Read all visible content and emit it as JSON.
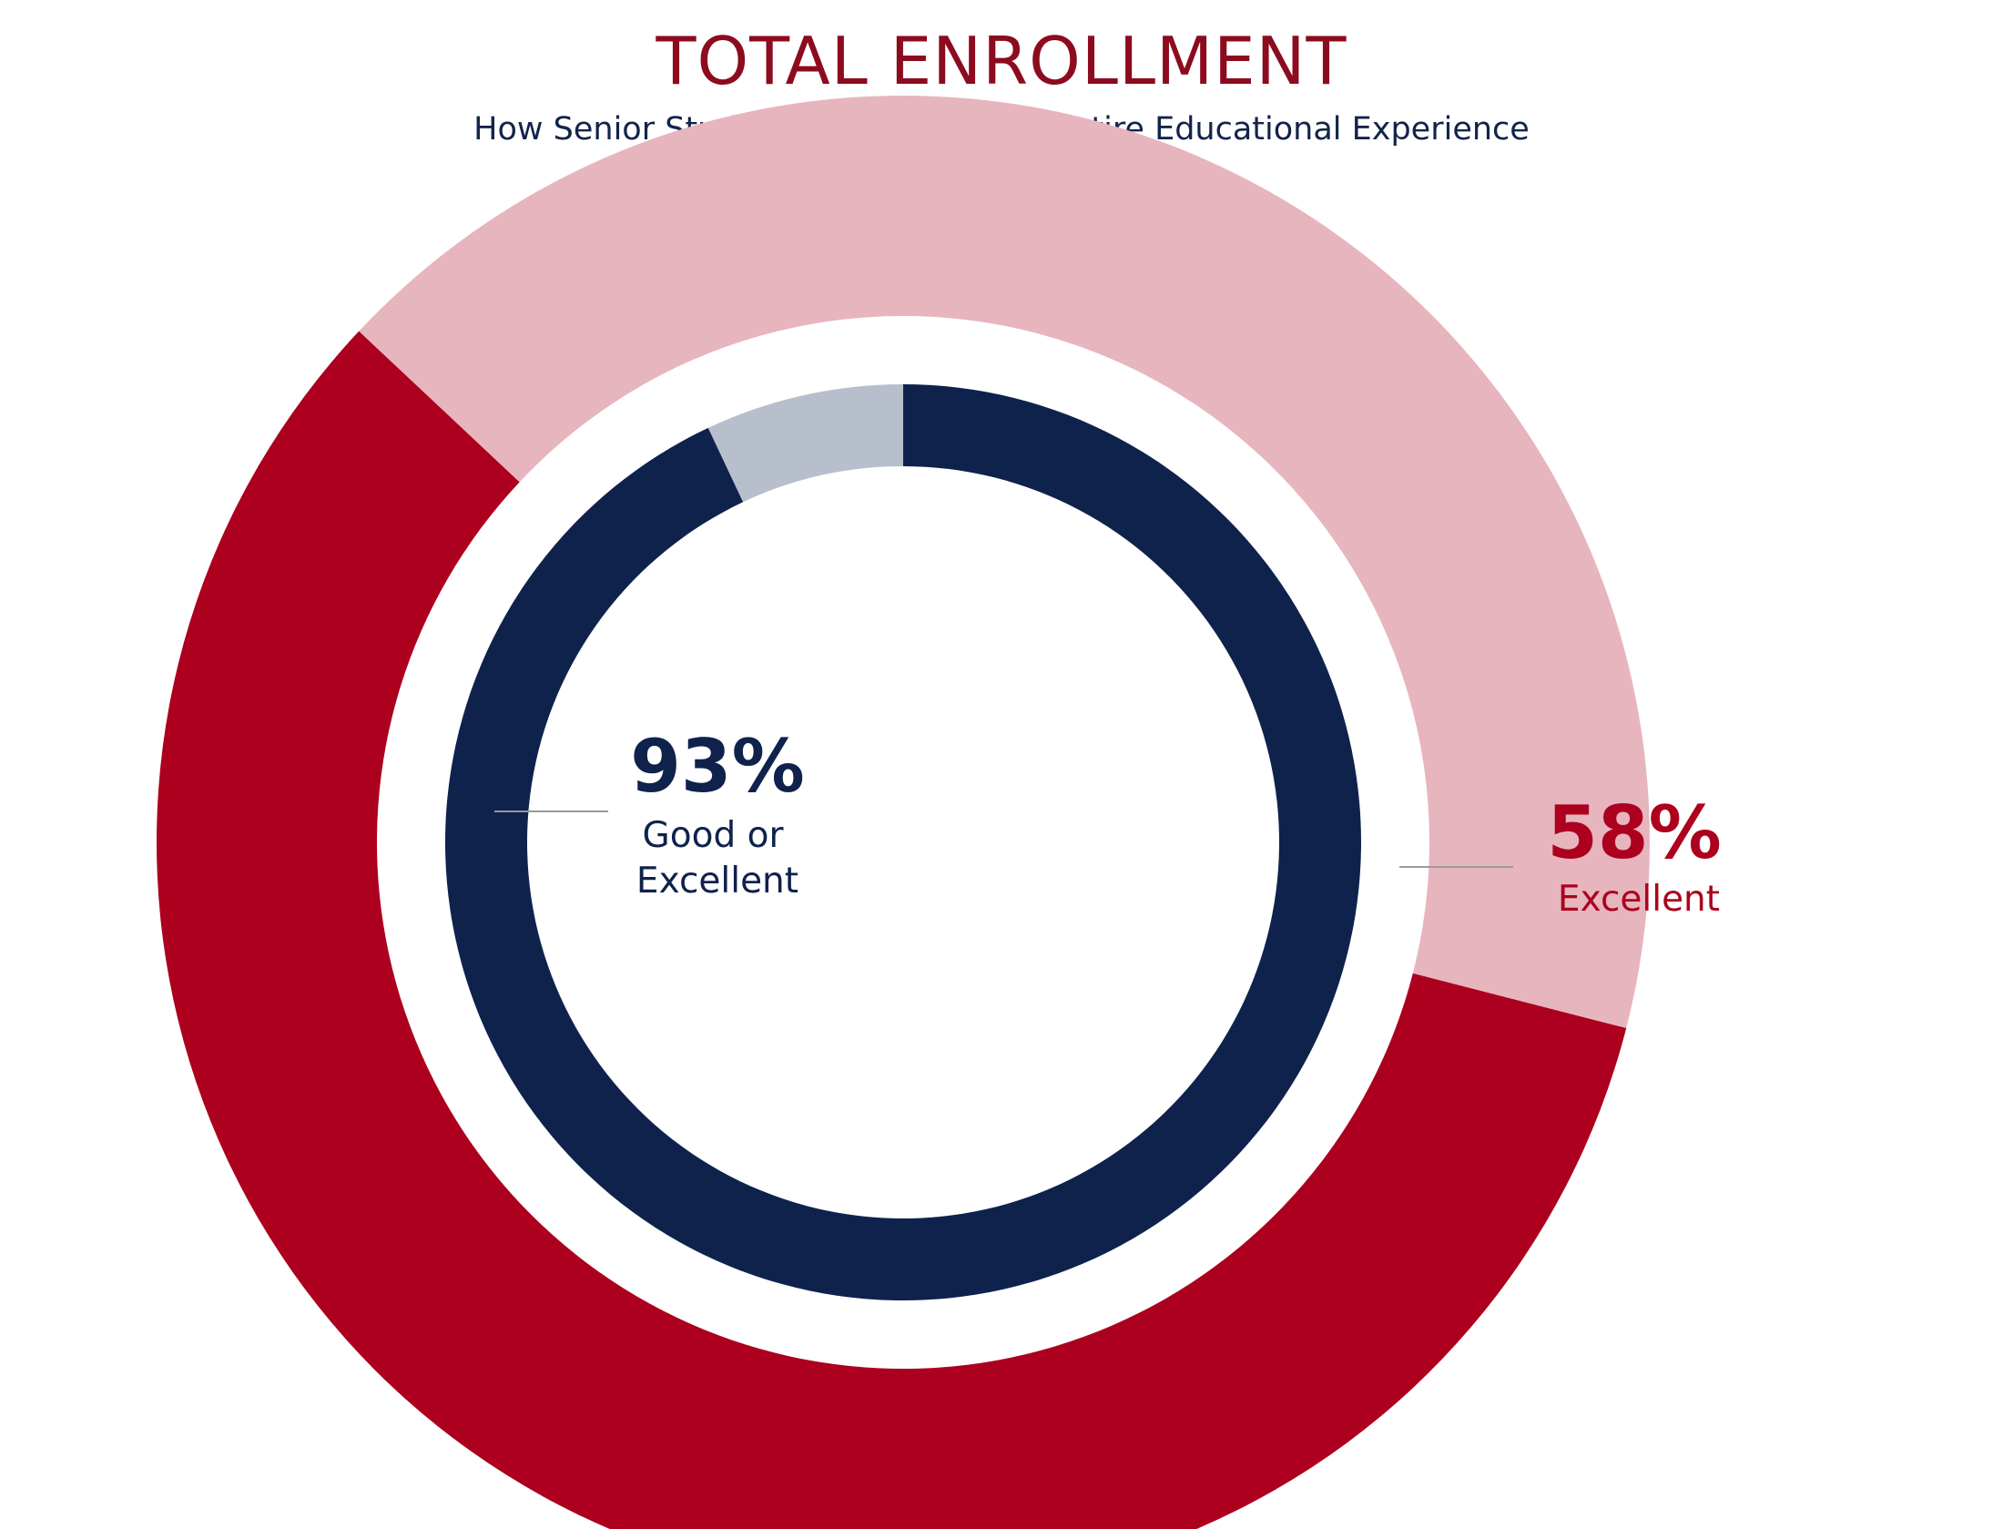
{
  "chart_data": {
    "type": "pie",
    "title": "TOTAL ENROLLMENT",
    "subtitle": "How Senior Students Evaluate their Entire Educational Experience",
    "rings": [
      {
        "ring": "outer",
        "slices": [
          {
            "label": "Excellent",
            "value": 58,
            "value_label": "58%",
            "color": "#ac001e"
          },
          {
            "label": "",
            "value": 42,
            "color": "#e7b5be"
          }
        ]
      },
      {
        "ring": "inner",
        "slices": [
          {
            "label": "Good or Excellent",
            "label_lines": [
              "Good or",
              "Excellent"
            ],
            "value": 93,
            "value_label": "93%",
            "color": "#0e224c"
          },
          {
            "label": "",
            "value": 7,
            "color": "#b8bfcc"
          }
        ]
      }
    ],
    "colors": {
      "title": "#8c0b1f",
      "subtitle": "#12244a",
      "leader_line": "#9a9a9a",
      "excellent_label": "#ac001e",
      "good_or_excellent_label": "#0e224c"
    }
  }
}
